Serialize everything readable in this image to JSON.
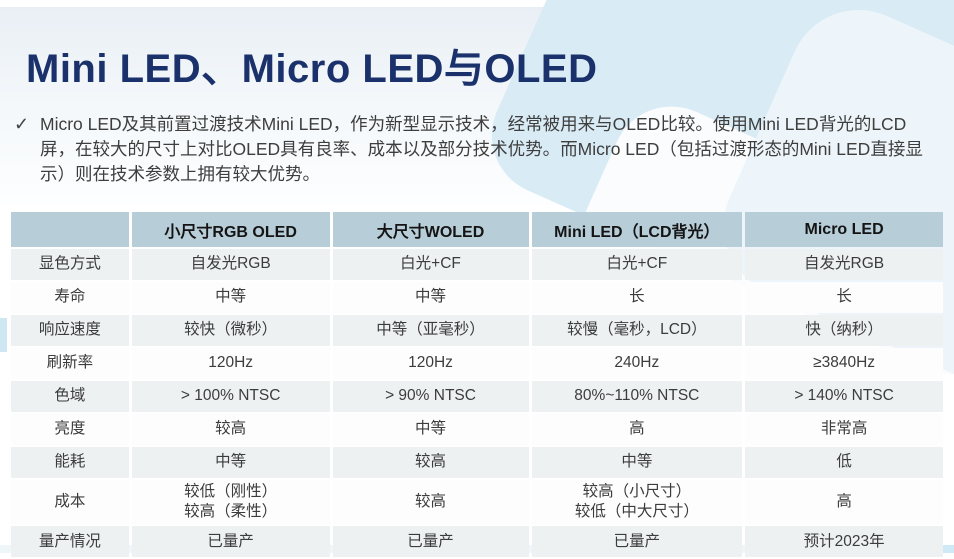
{
  "page": {
    "title": "Mini LED、Micro LED与OLED",
    "bullet": {
      "marker": "✓",
      "text": "Micro LED及其前置过渡技术Mini LED，作为新型显示技术，经常被用来与OLED比较。使用Mini LED背光的LCD屏，在较大的尺寸上对比OLED具有良率、成本以及部分技术优势。而Micro LED（包括过渡形态的Mini LED直接显示）则在技术参数上拥有较大优势。"
    }
  },
  "table": {
    "columns": [
      "",
      "小尺寸RGB OLED",
      "大尺寸WOLED",
      "Mini LED（LCD背光）",
      "Micro LED"
    ],
    "rows": [
      {
        "label": "显色方式",
        "values": [
          "自发光RGB",
          "白光+CF",
          "白光+CF",
          "自发光RGB"
        ]
      },
      {
        "label": "寿命",
        "values": [
          "中等",
          "中等",
          "长",
          "长"
        ]
      },
      {
        "label": "响应速度",
        "values": [
          "较快（微秒）",
          "中等（亚毫秒）",
          "较慢（毫秒，LCD）",
          "快（纳秒）"
        ]
      },
      {
        "label": "刷新率",
        "values": [
          "120Hz",
          "120Hz",
          "240Hz",
          "≥3840Hz"
        ]
      },
      {
        "label": "色域",
        "values": [
          "> 100% NTSC",
          "> 90% NTSC",
          "80%~110% NTSC",
          "> 140% NTSC"
        ]
      },
      {
        "label": "亮度",
        "values": [
          "较高",
          "中等",
          "高",
          "非常高"
        ]
      },
      {
        "label": "能耗",
        "values": [
          "中等",
          "较高",
          "中等",
          "低"
        ]
      },
      {
        "label": "成本",
        "values": [
          "较低（刚性）\n较高（柔性）",
          "较高",
          "较高（小尺寸）\n较低（中大尺寸）",
          "高"
        ]
      },
      {
        "label": "量产情况",
        "values": [
          "已量产",
          "已量产",
          "已量产",
          "预计2023年"
        ]
      }
    ]
  },
  "colors": {
    "title_color": "#1a316b",
    "body_text": "#3e3e3e",
    "table_header_bg": "#b7cdd8",
    "table_row_alt_bg": "#eef1f2",
    "table_row_bg": "#fdfdfd",
    "deco_blue": "#d9ebf5"
  }
}
